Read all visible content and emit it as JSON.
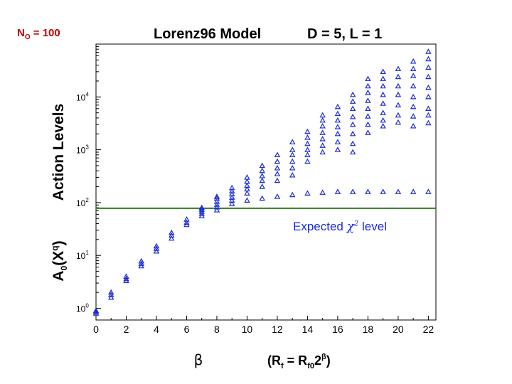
{
  "header": {
    "title": "Lorenz96 Model",
    "params": "D = 5, L = 1",
    "n_label_main": "N",
    "n_label_sub": "O",
    "n_label_value": " = 100"
  },
  "annotation": {
    "prefix": "Expected ",
    "symbol": "χ",
    "power": "2",
    "suffix": " level"
  },
  "chart_data": {
    "type": "scatter",
    "title": "Lorenz96 Model",
    "subtitle": "D = 5, L = 1",
    "ylabel_main": "Action Levels",
    "ylabel_sub": "A0(X^q)",
    "xlabel": "β",
    "xlabel_formula": "(Rf = Rf0 2^β)",
    "xlim": [
      0,
      22.5
    ],
    "ylim": [
      0.6,
      100000
    ],
    "yscale": "log",
    "x_ticks": [
      0,
      2,
      4,
      6,
      8,
      10,
      12,
      14,
      16,
      18,
      20,
      22
    ],
    "y_ticks": [
      {
        "value": 1,
        "base": "10",
        "exp": "0"
      },
      {
        "value": 10,
        "base": "10",
        "exp": "1"
      },
      {
        "value": 100,
        "base": "10",
        "exp": "2"
      },
      {
        "value": 1000,
        "base": "10",
        "exp": "3"
      },
      {
        "value": 10000,
        "base": "10",
        "exp": "4"
      }
    ],
    "reference_line": {
      "y": 78,
      "color": "#2e7d1f"
    },
    "marker_color": "#1a2bd6",
    "marker": "triangle-open",
    "series": [
      {
        "values": [
          {
            "x": 0,
            "y": [
              0.8,
              0.85,
              0.9
            ]
          },
          {
            "x": 1,
            "y": [
              1.6,
              1.8,
              2.0
            ]
          },
          {
            "x": 2,
            "y": [
              3.3,
              3.6,
              4.0
            ]
          },
          {
            "x": 3,
            "y": [
              6.3,
              7.0,
              7.8
            ]
          },
          {
            "x": 4,
            "y": [
              12,
              13.5,
              15
            ]
          },
          {
            "x": 5,
            "y": [
              21,
              24,
              27
            ]
          },
          {
            "x": 6,
            "y": [
              38,
              42,
              48
            ]
          },
          {
            "x": 7,
            "y": [
              56,
              62,
              68,
              74,
              80
            ]
          },
          {
            "x": 8,
            "y": [
              72,
              82,
              92,
              105,
              120,
              130
            ]
          },
          {
            "x": 9,
            "y": [
              95,
              110,
              125,
              145,
              165,
              190
            ]
          },
          {
            "x": 10,
            "y": [
              110,
              150,
              180,
              210,
              250,
              300
            ]
          },
          {
            "x": 11,
            "y": [
              120,
              200,
              260,
              320,
              400,
              500
            ]
          },
          {
            "x": 12,
            "y": [
              130,
              260,
              350,
              450,
              600,
              800
            ]
          },
          {
            "x": 13,
            "y": [
              140,
              330,
              450,
              600,
              800,
              1000,
              1400
            ]
          },
          {
            "x": 14,
            "y": [
              150,
              600,
              800,
              1000,
              1300,
              1700,
              2200
            ]
          },
          {
            "x": 15,
            "y": [
              155,
              900,
              1200,
              1600,
              2100,
              2800,
              3600,
              4500
            ]
          },
          {
            "x": 16,
            "y": [
              160,
              1000,
              1400,
              2000,
              2700,
              3600,
              4800,
              6500
            ]
          },
          {
            "x": 17,
            "y": [
              160,
              900,
              1300,
              2000,
              3000,
              4200,
              6000,
              8200,
              11000
            ]
          },
          {
            "x": 18,
            "y": [
              160,
              2100,
              3000,
              4300,
              6000,
              8500,
              12000,
              16000,
              22000
            ]
          },
          {
            "x": 19,
            "y": [
              160,
              2800,
              3600,
              5000,
              7500,
              11000,
              16000,
              22000,
              30000
            ]
          },
          {
            "x": 20,
            "y": [
              160,
              3300,
              4500,
              7000,
              11000,
              16000,
              24000,
              34000
            ]
          },
          {
            "x": 21,
            "y": [
              160,
              2800,
              4300,
              6500,
              10000,
              16000,
              25000,
              34000,
              47000
            ]
          },
          {
            "x": 22,
            "y": [
              160,
              3200,
              4500,
              6000,
              10000,
              15000,
              24000,
              36000,
              52000,
              72000
            ]
          }
        ]
      }
    ],
    "grid": false
  }
}
